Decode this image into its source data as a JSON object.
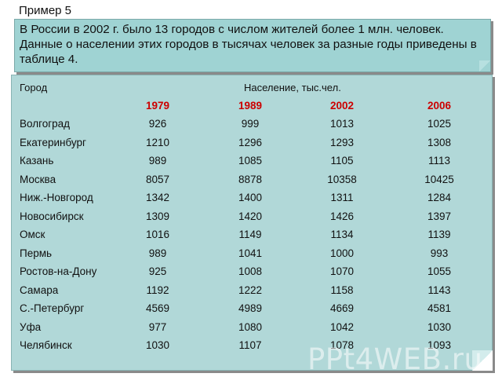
{
  "title": "Пример 5",
  "intro": "В России в 2002 г. было 13 городов с числом жителей более 1 млн. человек. Данные о населении этих городов в тысячах человек за разные годы приведены в таблице 4.",
  "table": {
    "city_header": "Город",
    "population_header": "Население, тыс.чел.",
    "years": [
      "1979",
      "1989",
      "2002",
      "2006"
    ],
    "rows": [
      {
        "city": "Волгоград",
        "values": [
          "926",
          "999",
          "1013",
          "1025"
        ]
      },
      {
        "city": "Екатеринбург",
        "values": [
          "1210",
          "1296",
          "1293",
          "1308"
        ]
      },
      {
        "city": "Казань",
        "values": [
          "989",
          "1085",
          "1105",
          "1113"
        ]
      },
      {
        "city": "Москва",
        "values": [
          "8057",
          "8878",
          "10358",
          "10425"
        ]
      },
      {
        "city": "Ниж.-Новгород",
        "values": [
          "1342",
          "1400",
          "1311",
          "1284"
        ]
      },
      {
        "city": "Новосибирск",
        "values": [
          "1309",
          "1420",
          "1426",
          "1397"
        ]
      },
      {
        "city": "Омск",
        "values": [
          "1016",
          "1149",
          "1134",
          "1139"
        ]
      },
      {
        "city": "Пермь",
        "values": [
          "989",
          "1041",
          "1000",
          "993"
        ]
      },
      {
        "city": "Ростов-на-Дону",
        "values": [
          "925",
          "1008",
          "1070",
          "1055"
        ]
      },
      {
        "city": "Самара",
        "values": [
          "1192",
          "1222",
          "1158",
          "1143"
        ]
      },
      {
        "city": "С.-Петербург",
        "values": [
          "4569",
          "4989",
          "4669",
          "4581"
        ]
      },
      {
        "city": "Уфа",
        "values": [
          "977",
          "1080",
          "1042",
          "1030"
        ]
      },
      {
        "city": "Челябинск",
        "values": [
          "1030",
          "1107",
          "1078",
          "1093"
        ]
      }
    ]
  },
  "watermark": "PPt4WEB.ru",
  "colors": {
    "intro_background": "#9fd3d3",
    "table_background": "#b1d8d8",
    "year_text": "#cc0000"
  }
}
